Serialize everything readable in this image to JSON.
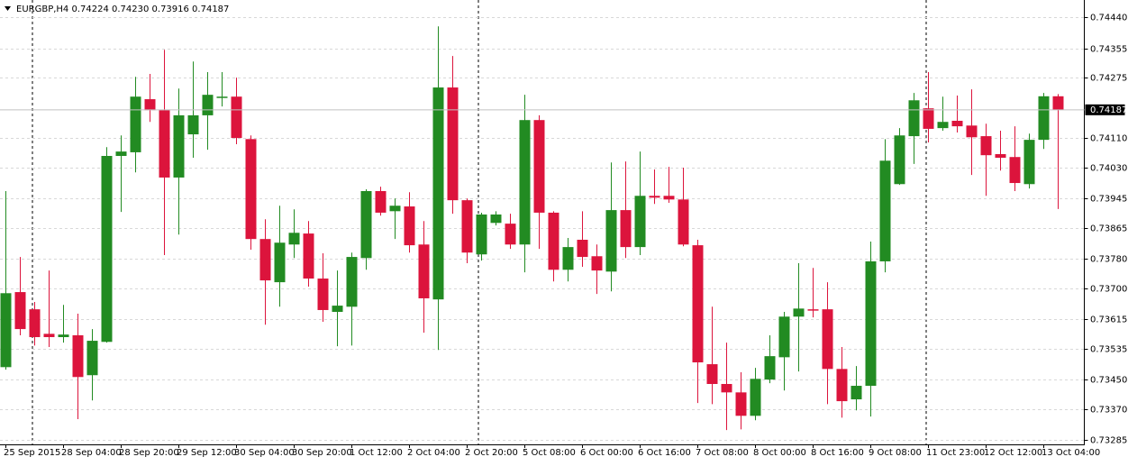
{
  "chart_data": {
    "type": "candlestick",
    "title": "EURGBP,H4  0.74224 0.74230 0.73916 0.74187",
    "categories": [
      "25 Sep 2015",
      null,
      null,
      null,
      "28 Sep 04:00",
      null,
      null,
      null,
      "28 Sep 20:00",
      null,
      null,
      null,
      "29 Sep 12:00",
      null,
      null,
      null,
      "30 Sep 04:00",
      null,
      null,
      null,
      "30 Sep 20:00",
      null,
      null,
      null,
      "1 Oct 12:00",
      null,
      null,
      null,
      "2 Oct 04:00",
      null,
      null,
      null,
      "2 Oct 20:00",
      null,
      null,
      null,
      "5 Oct 08:00",
      null,
      null,
      null,
      "6 Oct 00:00",
      null,
      null,
      null,
      "6 Oct 16:00",
      null,
      null,
      null,
      "7 Oct 08:00",
      null,
      null,
      null,
      "8 Oct 00:00",
      null,
      null,
      null,
      "8 Oct 16:00",
      null,
      null,
      null,
      "9 Oct 08:00",
      null,
      null,
      null,
      "11 Oct 23:00",
      null,
      null,
      null,
      "12 Oct 12:00",
      null,
      null,
      null,
      "13 Oct 04:00",
      null
    ],
    "open": [
      0.73484,
      0.73689,
      0.73642,
      0.73575,
      0.73566,
      0.73571,
      0.73462,
      0.73553,
      0.74061,
      0.74071,
      0.74216,
      0.74186,
      0.74002,
      0.7412,
      0.74172,
      0.74221,
      0.74223,
      0.74107,
      0.73834,
      0.73716,
      0.73819,
      0.73849,
      0.73726,
      0.73635,
      0.73649,
      0.73782,
      0.73965,
      0.7391,
      0.73923,
      0.73819,
      0.73669,
      0.74248,
      0.7394,
      0.73792,
      0.73878,
      0.73876,
      0.73819,
      0.74159,
      0.73906,
      0.7375,
      0.73832,
      0.73787,
      0.73745,
      0.73913,
      0.73812,
      0.73952,
      0.73952,
      0.73942,
      0.73817,
      0.73492,
      0.73438,
      0.73415,
      0.73351,
      0.7345,
      0.73511,
      0.73622,
      0.73642,
      0.73642,
      0.73479,
      0.73396,
      0.73433,
      0.73773,
      0.73984,
      0.74115,
      0.74191,
      0.74137,
      0.74157,
      0.74144,
      0.74115,
      0.74066,
      0.74058,
      0.73984,
      0.74105,
      0.74224
    ],
    "high": [
      0.73965,
      0.73785,
      0.73662,
      0.73748,
      0.73654,
      0.7363,
      0.73588,
      0.74085,
      0.74117,
      0.74277,
      0.74285,
      0.74351,
      0.74245,
      0.74319,
      0.7429,
      0.7429,
      0.74275,
      0.74117,
      0.73888,
      0.73925,
      0.73915,
      0.73883,
      0.73795,
      0.73748,
      0.73797,
      0.7397,
      0.73977,
      0.73945,
      0.73962,
      0.73883,
      0.74415,
      0.74334,
      0.73945,
      0.73906,
      0.7391,
      0.73903,
      0.74228,
      0.74172,
      0.7391,
      0.73837,
      0.7391,
      0.73819,
      0.74043,
      0.74046,
      0.74073,
      0.74024,
      0.74031,
      0.74029,
      0.73832,
      0.73649,
      0.73551,
      0.7347,
      0.73482,
      0.73571,
      0.73635,
      0.73768,
      0.73755,
      0.73716,
      0.73539,
      0.73487,
      0.73827,
      0.74107,
      0.74137,
      0.74233,
      0.7429,
      0.74223,
      0.74226,
      0.74243,
      0.74149,
      0.7413,
      0.74142,
      0.74122,
      0.74233,
      0.7423
    ],
    "low": [
      0.73477,
      0.73571,
      0.73543,
      0.73539,
      0.73551,
      0.73342,
      0.73393,
      0.73551,
      0.73908,
      0.74016,
      0.74154,
      0.7379,
      0.73846,
      0.74056,
      0.74078,
      0.74196,
      0.74093,
      0.73805,
      0.736,
      0.73649,
      0.73782,
      0.73704,
      0.73608,
      0.73541,
      0.73543,
      0.7375,
      0.73898,
      0.73834,
      0.73797,
      0.73578,
      0.73531,
      0.73903,
      0.73768,
      0.73775,
      0.73871,
      0.73807,
      0.73743,
      0.73807,
      0.73718,
      0.73718,
      0.73758,
      0.73684,
      0.73691,
      0.73782,
      0.7379,
      0.7393,
      0.73933,
      0.73814,
      0.73386,
      0.73383,
      0.73312,
      0.73314,
      0.73339,
      0.7344,
      0.7342,
      0.73472,
      0.7362,
      0.73383,
      0.73346,
      0.73366,
      0.73349,
      0.73743,
      0.73982,
      0.74039,
      0.74098,
      0.7413,
      0.74125,
      0.74009,
      0.73952,
      0.74021,
      0.73965,
      0.73972,
      0.7408,
      0.73916
    ],
    "close": [
      0.73686,
      0.73588,
      0.73566,
      0.73566,
      0.73573,
      0.73457,
      0.73556,
      0.74061,
      0.74073,
      0.74223,
      0.74186,
      0.74002,
      0.74172,
      0.74172,
      0.74228,
      0.74223,
      0.7411,
      0.73834,
      0.73721,
      0.73824,
      0.73851,
      0.73726,
      0.7364,
      0.73652,
      0.73785,
      0.73965,
      0.73906,
      0.73925,
      0.73817,
      0.73672,
      0.74248,
      0.7394,
      0.73797,
      0.73901,
      0.73901,
      0.73819,
      0.74159,
      0.73906,
      0.7375,
      0.73812,
      0.73785,
      0.73748,
      0.73913,
      0.73812,
      0.73952,
      0.73947,
      0.73942,
      0.73819,
      0.73497,
      0.73438,
      0.73415,
      0.73351,
      0.73452,
      0.73514,
      0.73622,
      0.73644,
      0.7364,
      0.73479,
      0.73391,
      0.73433,
      0.73773,
      0.74048,
      0.74117,
      0.74213,
      0.74135,
      0.74154,
      0.74142,
      0.74112,
      0.74063,
      0.74056,
      0.73987,
      0.74105,
      0.74224,
      0.74187
    ],
    "up_color": "#228b22",
    "down_color": "#dc143c",
    "ylim": [
      0.73273,
      0.74487
    ],
    "yticks": [
      {
        "value": 0.7444,
        "label": "0.74440"
      },
      0.74355,
      0.74275,
      {
        "value": 0.7411,
        "label": "0.74110"
      },
      {
        "value": 0.7403,
        "label": "0.74030"
      },
      0.73945,
      0.73865,
      {
        "value": 0.7378,
        "label": "0.73780"
      },
      {
        "value": 0.737,
        "label": "0.73700"
      },
      0.73615,
      0.73535,
      {
        "value": 0.7345,
        "label": "0.73450"
      },
      {
        "value": 0.7337,
        "label": "0.73370"
      },
      0.73285
    ],
    "price_marker": 0.74187,
    "grid": true
  }
}
